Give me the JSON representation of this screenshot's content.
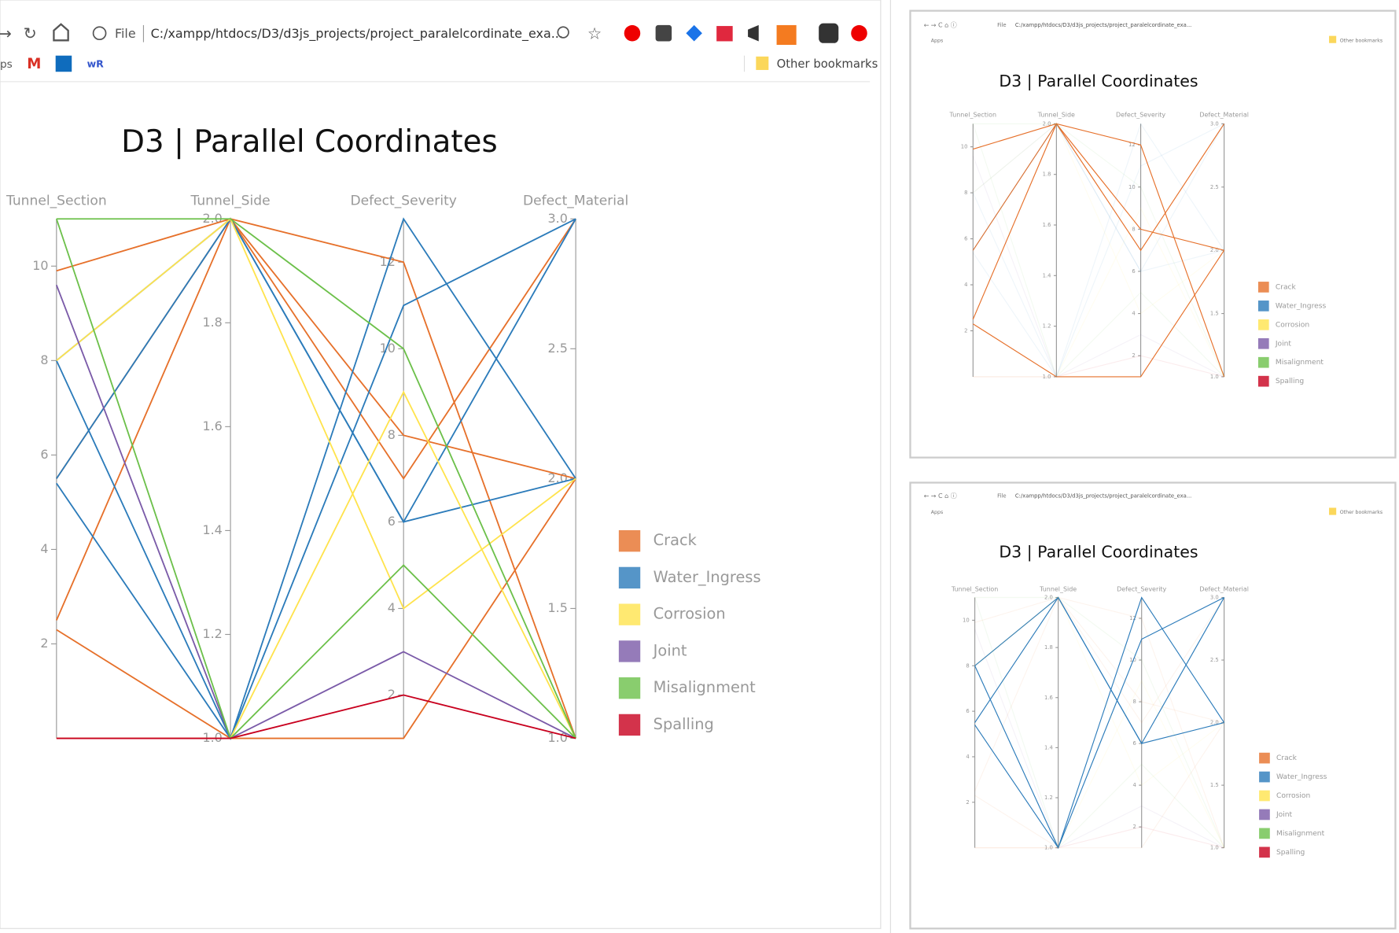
{
  "windows": [
    {
      "file": "File",
      "url": "C:/xampp/htdocs/D3/d3js_projects/project_paralelcordinate_exa...",
      "apps": "ps",
      "other_bookmarks": "Other bookmarks"
    },
    {
      "file": "File",
      "url": "C:/xampp/htdocs/D3/d3js_projects/project_paralelcordinate_exa...",
      "apps": "Apps",
      "other_bookmarks": "Other bookmarks"
    },
    {
      "file": "File",
      "url": "C:/xampp/htdocs/D3/d3js_projects/project_paralelcordinate_exa...",
      "apps": "Apps",
      "other_bookmarks": "Other bookmarks"
    }
  ],
  "chart_data": [
    {
      "type": "parallel",
      "title": "D3 | Parallel Coordinates",
      "dimensions": [
        {
          "name": "Tunnel_Section",
          "ylim": [
            0,
            11
          ],
          "yticks": [
            2,
            4,
            6,
            8,
            10
          ]
        },
        {
          "name": "Tunnel_Side",
          "ylim": [
            1,
            2
          ],
          "yticks": [
            {
              "value": 1,
              "label": "1.0"
            },
            1.2,
            1.4,
            1.6,
            1.8,
            {
              "value": 2,
              "label": "2.0"
            }
          ]
        },
        {
          "name": "Defect_Severity",
          "ylim": [
            1,
            13
          ],
          "yticks": [
            2,
            4,
            6,
            8,
            10,
            12
          ]
        },
        {
          "name": "Defect_Material",
          "ylim": [
            1,
            3
          ],
          "yticks": [
            {
              "value": 1,
              "label": "1.0"
            },
            1.5,
            {
              "value": 2,
              "label": "2.0"
            },
            2.5,
            {
              "value": 3,
              "label": "3.0"
            }
          ]
        }
      ],
      "series": [
        {
          "name": "Crack",
          "color": "#e6702a",
          "values": [
            [
              9.9,
              2,
              12,
              1
            ],
            [
              5.5,
              2,
              8,
              2
            ],
            [
              2.5,
              2,
              7,
              3
            ],
            [
              2.3,
              1,
              1,
              2
            ]
          ]
        },
        {
          "name": "Water_Ingress",
          "color": "#2b7bba",
          "values": [
            [
              8,
              1,
              13,
              2
            ],
            [
              5.4,
              1,
              11,
              3
            ],
            [
              5.5,
              2,
              6,
              3
            ],
            [
              8,
              2,
              6,
              2
            ]
          ]
        },
        {
          "name": "Corrosion",
          "color": "#ffe34d",
          "values": [
            [
              8,
              2,
              4,
              2
            ],
            [
              0,
              1,
              9,
              1
            ]
          ]
        },
        {
          "name": "Joint",
          "color": "#7a5aa8",
          "values": [
            [
              9.6,
              1,
              3,
              1
            ]
          ]
        },
        {
          "name": "Misalignment",
          "color": "#6cc04a",
          "values": [
            [
              11,
              2,
              10,
              1
            ],
            [
              11,
              1,
              5,
              1
            ]
          ]
        },
        {
          "name": "Spalling",
          "color": "#c8001e",
          "values": [
            [
              0,
              1,
              2,
              1
            ]
          ]
        }
      ]
    },
    {
      "type": "parallel",
      "title": "D3 | Parallel Coordinates",
      "highlight": "Crack",
      "dimensions": [
        {
          "name": "Tunnel_Section",
          "ylim": [
            0,
            11
          ],
          "yticks": [
            2,
            4,
            6,
            8,
            10
          ]
        },
        {
          "name": "Tunnel_Side",
          "ylim": [
            1,
            2
          ],
          "yticks": [
            {
              "value": 1,
              "label": "1.0"
            },
            1.2,
            1.4,
            1.6,
            1.8,
            {
              "value": 2,
              "label": "2.0"
            }
          ]
        },
        {
          "name": "Defect_Severity",
          "ylim": [
            1,
            13
          ],
          "yticks": [
            2,
            4,
            6,
            8,
            10,
            12
          ]
        },
        {
          "name": "Defect_Material",
          "ylim": [
            1,
            3
          ],
          "yticks": [
            {
              "value": 1,
              "label": "1.0"
            },
            1.5,
            {
              "value": 2,
              "label": "2.0"
            },
            2.5,
            {
              "value": 3,
              "label": "3.0"
            }
          ]
        }
      ],
      "series": [
        {
          "name": "Crack",
          "color": "#e6702a",
          "values": [
            [
              9.9,
              2,
              12,
              1
            ],
            [
              5.5,
              2,
              8,
              2
            ],
            [
              2.5,
              2,
              7,
              3
            ],
            [
              2.3,
              1,
              1,
              2
            ]
          ]
        },
        {
          "name": "Water_Ingress",
          "color": "#2b7bba",
          "values": [
            [
              8,
              1,
              13,
              2
            ],
            [
              5.4,
              1,
              11,
              3
            ],
            [
              5.5,
              2,
              6,
              3
            ],
            [
              8,
              2,
              6,
              2
            ]
          ]
        },
        {
          "name": "Corrosion",
          "color": "#ffe34d",
          "values": [
            [
              8,
              2,
              4,
              2
            ],
            [
              0,
              1,
              9,
              1
            ]
          ]
        },
        {
          "name": "Joint",
          "color": "#7a5aa8",
          "values": [
            [
              9.6,
              1,
              3,
              1
            ]
          ]
        },
        {
          "name": "Misalignment",
          "color": "#6cc04a",
          "values": [
            [
              11,
              2,
              10,
              1
            ],
            [
              11,
              1,
              5,
              1
            ]
          ]
        },
        {
          "name": "Spalling",
          "color": "#c8001e",
          "values": [
            [
              0,
              1,
              2,
              1
            ]
          ]
        }
      ]
    },
    {
      "type": "parallel",
      "title": "D3 | Parallel Coordinates",
      "highlight": "Water_Ingress",
      "dimensions": [
        {
          "name": "Tunnel_Section",
          "ylim": [
            0,
            11
          ],
          "yticks": [
            2,
            4,
            6,
            8,
            10
          ]
        },
        {
          "name": "Tunnel_Side",
          "ylim": [
            1,
            2
          ],
          "yticks": [
            {
              "value": 1,
              "label": "1.0"
            },
            1.2,
            1.4,
            1.6,
            1.8,
            {
              "value": 2,
              "label": "2.0"
            }
          ]
        },
        {
          "name": "Defect_Severity",
          "ylim": [
            1,
            13
          ],
          "yticks": [
            2,
            4,
            6,
            8,
            10,
            12
          ]
        },
        {
          "name": "Defect_Material",
          "ylim": [
            1,
            3
          ],
          "yticks": [
            {
              "value": 1,
              "label": "1.0"
            },
            1.5,
            {
              "value": 2,
              "label": "2.0"
            },
            2.5,
            {
              "value": 3,
              "label": "3.0"
            }
          ]
        }
      ],
      "series": [
        {
          "name": "Crack",
          "color": "#e6702a",
          "values": [
            [
              9.9,
              2,
              12,
              1
            ],
            [
              5.5,
              2,
              8,
              2
            ],
            [
              2.5,
              2,
              7,
              3
            ],
            [
              2.3,
              1,
              1,
              2
            ]
          ]
        },
        {
          "name": "Water_Ingress",
          "color": "#2b7bba",
          "values": [
            [
              8,
              1,
              13,
              2
            ],
            [
              5.4,
              1,
              11,
              3
            ],
            [
              5.5,
              2,
              6,
              3
            ],
            [
              8,
              2,
              6,
              2
            ]
          ]
        },
        {
          "name": "Corrosion",
          "color": "#ffe34d",
          "values": [
            [
              8,
              2,
              4,
              2
            ],
            [
              0,
              1,
              9,
              1
            ]
          ]
        },
        {
          "name": "Joint",
          "color": "#7a5aa8",
          "values": [
            [
              9.6,
              1,
              3,
              1
            ]
          ]
        },
        {
          "name": "Misalignment",
          "color": "#6cc04a",
          "values": [
            [
              11,
              2,
              10,
              1
            ],
            [
              11,
              1,
              5,
              1
            ]
          ]
        },
        {
          "name": "Spalling",
          "color": "#c8001e",
          "values": [
            [
              0,
              1,
              2,
              1
            ]
          ]
        }
      ]
    }
  ]
}
